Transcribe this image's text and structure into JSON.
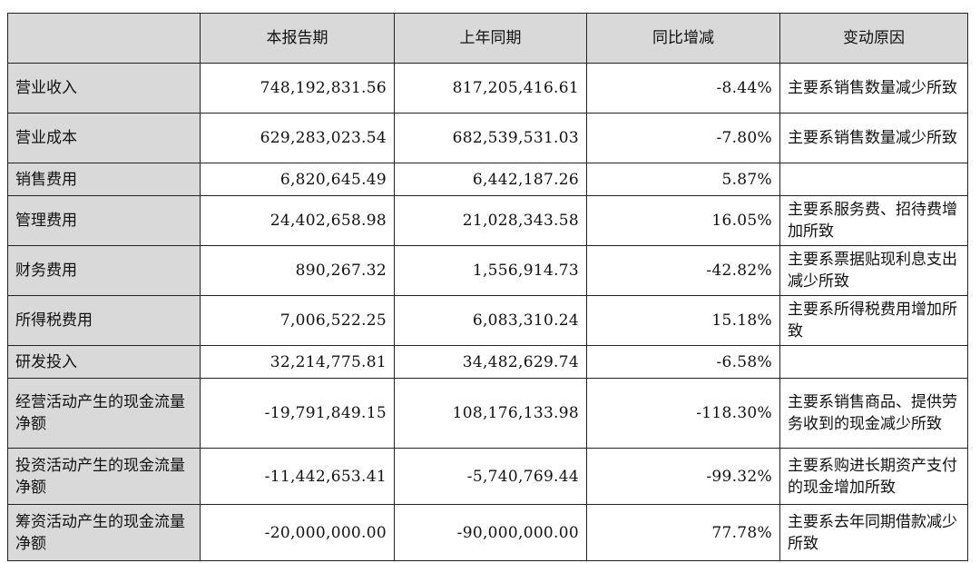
{
  "header": {
    "blank": "",
    "current": "本报告期",
    "prior": "上年同期",
    "yoy": "同比增减",
    "reason": "变动原因"
  },
  "rows": [
    {
      "label": "营业收入",
      "current": "748,192,831.56",
      "prior": "817,205,416.61",
      "yoy": "-8.44%",
      "reason": "主要系销售数量减少所致"
    },
    {
      "label": "营业成本",
      "current": "629,283,023.54",
      "prior": "682,539,531.03",
      "yoy": "-7.80%",
      "reason": "主要系销售数量减少所致"
    },
    {
      "label": "销售费用",
      "current": "6,820,645.49",
      "prior": "6,442,187.26",
      "yoy": "5.87%",
      "reason": ""
    },
    {
      "label": "管理费用",
      "current": "24,402,658.98",
      "prior": "21,028,343.58",
      "yoy": "16.05%",
      "reason": "主要系服务费、招待费增加所致"
    },
    {
      "label": "财务费用",
      "current": "890,267.32",
      "prior": "1,556,914.73",
      "yoy": "-42.82%",
      "reason": "主要系票据贴现利息支出减少所致"
    },
    {
      "label": "所得税费用",
      "current": "7,006,522.25",
      "prior": "6,083,310.24",
      "yoy": "15.18%",
      "reason": "主要系所得税费用增加所致"
    },
    {
      "label": "研发投入",
      "current": "32,214,775.81",
      "prior": "34,482,629.74",
      "yoy": "-6.58%",
      "reason": ""
    },
    {
      "label": "经营活动产生的现金流量净额",
      "current": "-19,791,849.15",
      "prior": "108,176,133.98",
      "yoy": "-118.30%",
      "reason": "主要系销售商品、提供劳务收到的现金减少所致"
    },
    {
      "label": "投资活动产生的现金流量净额",
      "current": "-11,442,653.41",
      "prior": "-5,740,769.44",
      "yoy": "-99.32%",
      "reason": "主要系购进长期资产支付的现金增加所致"
    },
    {
      "label": "筹资活动产生的现金流量净额",
      "current": "-20,000,000.00",
      "prior": "-90,000,000.00",
      "yoy": "77.78%",
      "reason": "主要系去年同期借款减少所致"
    }
  ]
}
